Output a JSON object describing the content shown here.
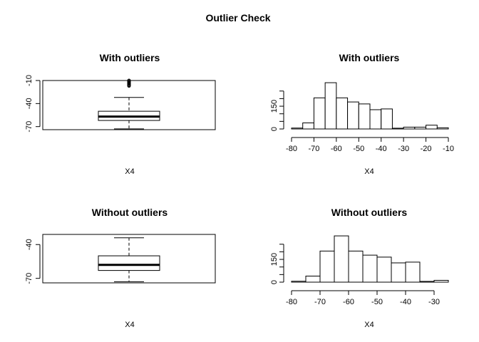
{
  "figure": {
    "main_title": "Outlier Check"
  },
  "chart_data": [
    {
      "type": "box",
      "panel": "top-left",
      "title": "With outliers",
      "xlabel": "X4",
      "orientation": "horizontal",
      "value_axis": {
        "range": [
          -74,
          -10
        ],
        "ticks": [
          -70,
          -40,
          -10
        ],
        "tick_labels": [
          "-70",
          "-40",
          "-10"
        ]
      },
      "box": {
        "whisker_low": -73,
        "q1": -62,
        "median": -57,
        "q3": -50,
        "whisker_high": -32
      },
      "outliers": [
        -10,
        -11,
        -12,
        -13,
        -14,
        -15,
        -16,
        -17
      ]
    },
    {
      "type": "bar",
      "subtype": "histogram",
      "panel": "top-right",
      "title": "With outliers",
      "xlabel": "X4",
      "x_ticks": [
        -80,
        -70,
        -60,
        -50,
        -40,
        -30,
        -20,
        -10
      ],
      "x_tick_labels": [
        "-80",
        "-70",
        "-60",
        "-50",
        "-40",
        "-30",
        "-20",
        "-10"
      ],
      "y_ticks": [
        0,
        50,
        100,
        150,
        200,
        250
      ],
      "y_tick_labels": [
        "0",
        "",
        "",
        "150",
        "",
        ""
      ],
      "ylim": [
        0,
        310
      ],
      "bins": [
        {
          "from": -80,
          "to": -75,
          "count": 6
        },
        {
          "from": -75,
          "to": -70,
          "count": 40
        },
        {
          "from": -70,
          "to": -65,
          "count": 205
        },
        {
          "from": -65,
          "to": -60,
          "count": 305
        },
        {
          "from": -60,
          "to": -55,
          "count": 205
        },
        {
          "from": -55,
          "to": -50,
          "count": 178
        },
        {
          "from": -50,
          "to": -45,
          "count": 165
        },
        {
          "from": -45,
          "to": -40,
          "count": 127
        },
        {
          "from": -40,
          "to": -35,
          "count": 132
        },
        {
          "from": -35,
          "to": -30,
          "count": 5
        },
        {
          "from": -30,
          "to": -25,
          "count": 12
        },
        {
          "from": -25,
          "to": -20,
          "count": 12
        },
        {
          "from": -20,
          "to": -15,
          "count": 25
        },
        {
          "from": -15,
          "to": -10,
          "count": 8
        }
      ]
    },
    {
      "type": "box",
      "panel": "bottom-left",
      "title": "Without outliers",
      "xlabel": "X4",
      "orientation": "horizontal",
      "value_axis": {
        "range": [
          -74,
          -31
        ],
        "ticks": [
          -70,
          -40
        ],
        "tick_labels": [
          "-70",
          "-40"
        ]
      },
      "box": {
        "whisker_low": -73,
        "q1": -63,
        "median": -58,
        "q3": -50,
        "whisker_high": -34
      },
      "outliers": []
    },
    {
      "type": "bar",
      "subtype": "histogram",
      "panel": "bottom-right",
      "title": "Without outliers",
      "xlabel": "X4",
      "x_ticks": [
        -80,
        -70,
        -60,
        -50,
        -40,
        -30
      ],
      "x_tick_labels": [
        "-80",
        "-70",
        "-60",
        "-50",
        "-40",
        "-30"
      ],
      "y_ticks": [
        0,
        50,
        100,
        150,
        200,
        250
      ],
      "y_tick_labels": [
        "0",
        "",
        "",
        "150",
        "",
        ""
      ],
      "ylim": [
        0,
        310
      ],
      "bins": [
        {
          "from": -80,
          "to": -75,
          "count": 6
        },
        {
          "from": -75,
          "to": -70,
          "count": 40
        },
        {
          "from": -70,
          "to": -65,
          "count": 205
        },
        {
          "from": -65,
          "to": -60,
          "count": 305
        },
        {
          "from": -60,
          "to": -55,
          "count": 205
        },
        {
          "from": -55,
          "to": -50,
          "count": 178
        },
        {
          "from": -50,
          "to": -45,
          "count": 165
        },
        {
          "from": -45,
          "to": -40,
          "count": 127
        },
        {
          "from": -40,
          "to": -35,
          "count": 132
        },
        {
          "from": -35,
          "to": -30,
          "count": 5
        },
        {
          "from": -30,
          "to": -25,
          "count": 12
        }
      ]
    }
  ]
}
